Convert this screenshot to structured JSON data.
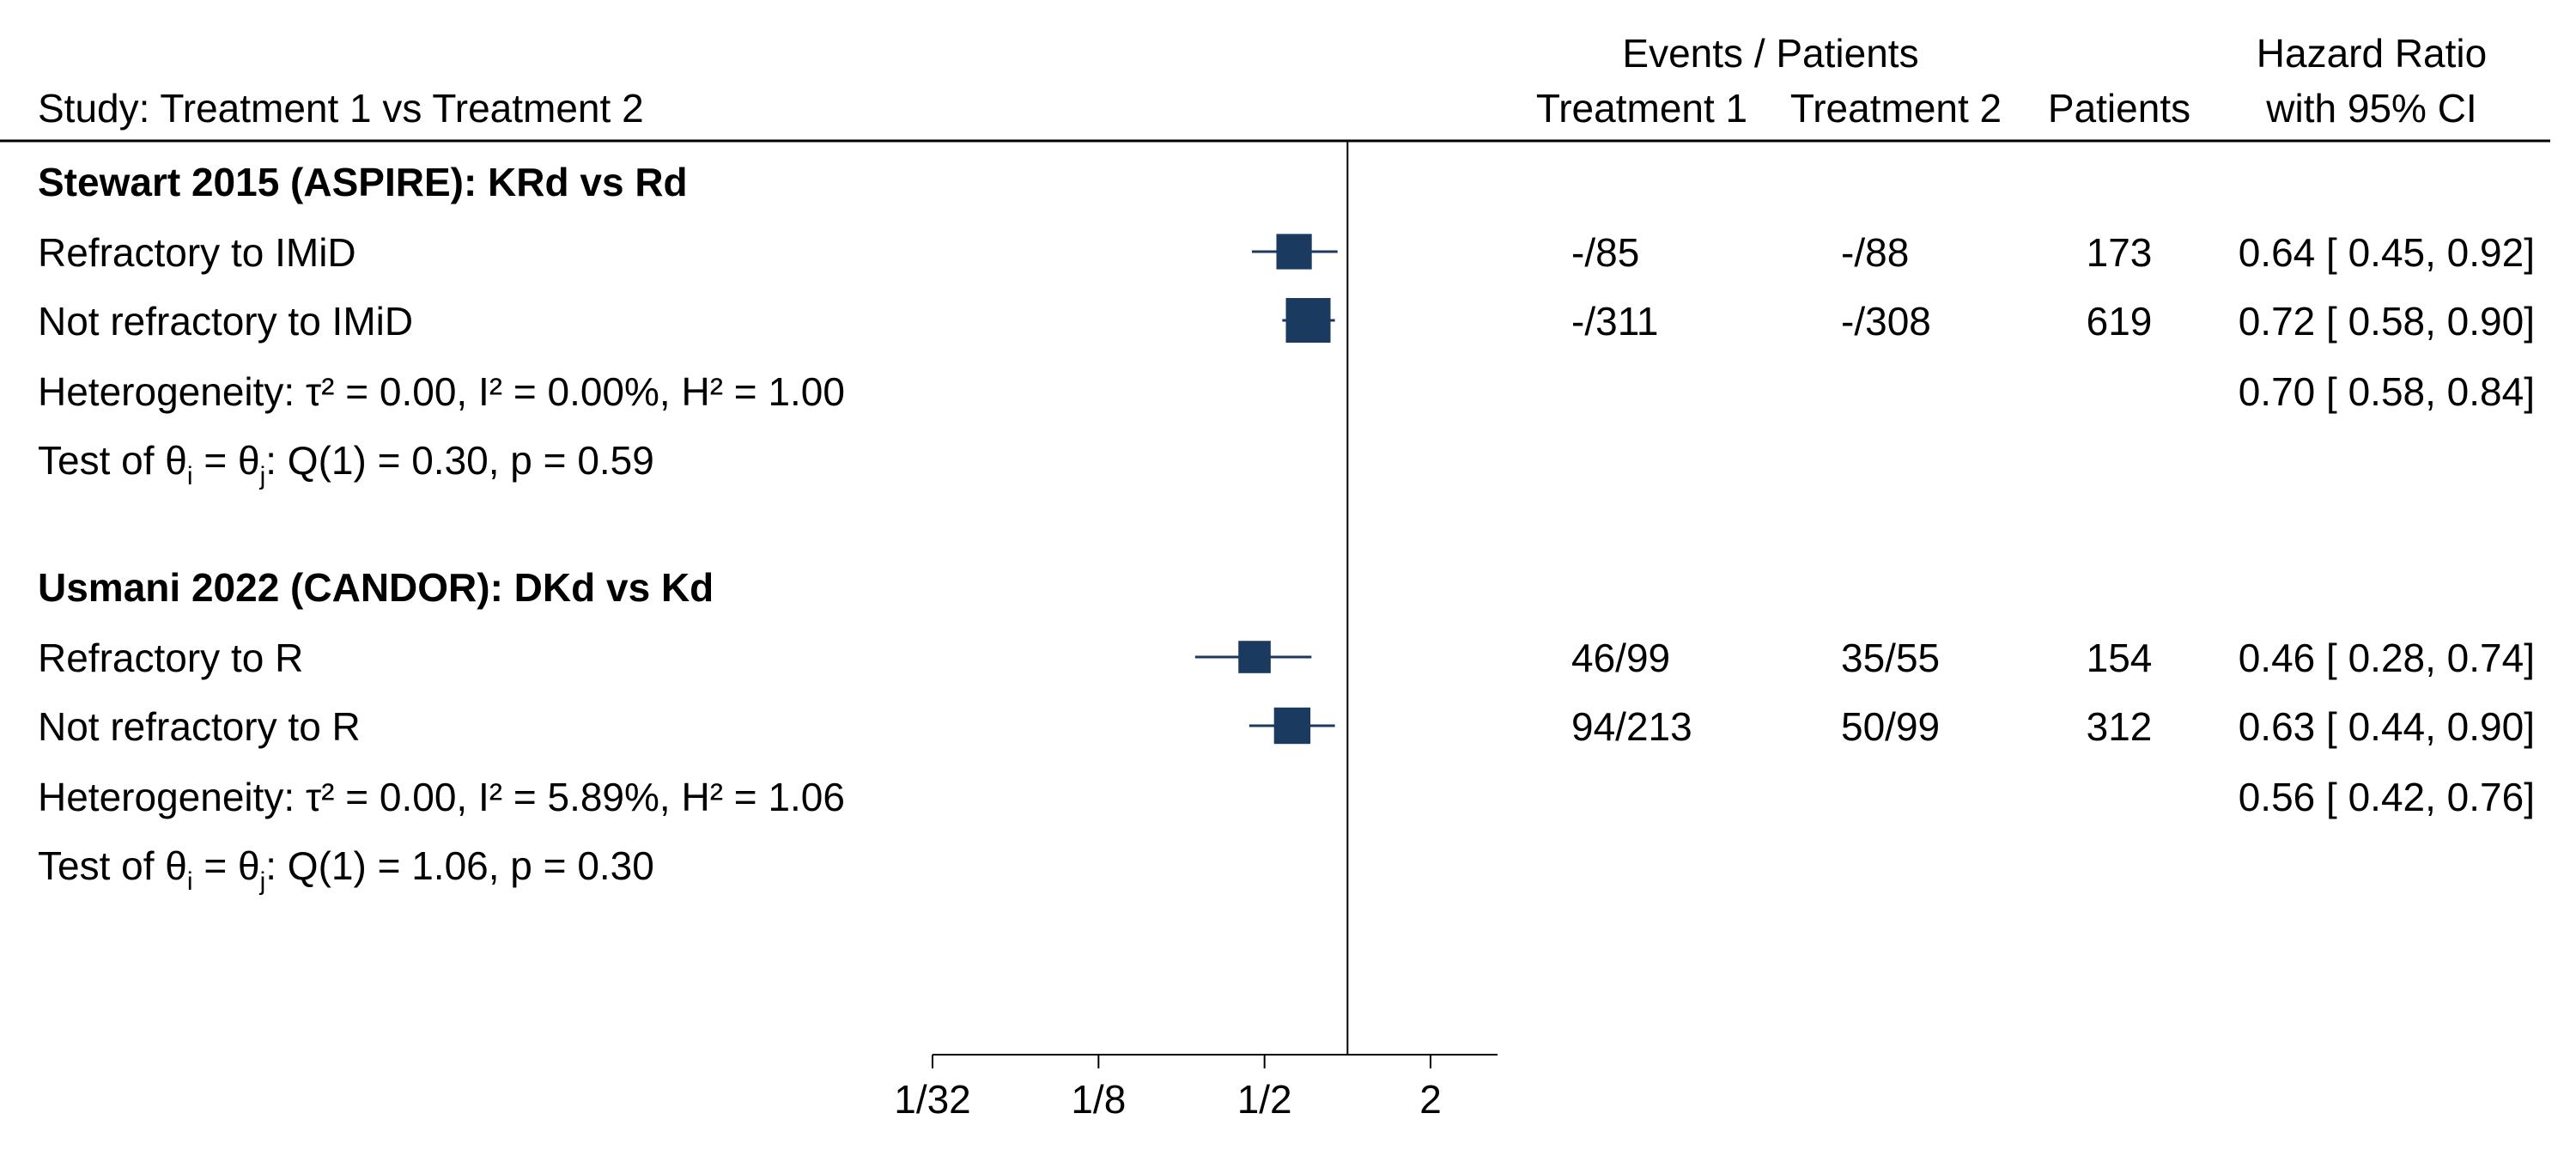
{
  "chart_data": {
    "type": "forest",
    "x_scale": "log2",
    "ticks": [
      {
        "value": 0.03125,
        "label": "1/32"
      },
      {
        "value": 0.125,
        "label": "1/8"
      },
      {
        "value": 0.5,
        "label": "1/2"
      },
      {
        "value": 2,
        "label": "2"
      }
    ],
    "xlim": [
      0.03125,
      3.5
    ],
    "reference_line": 1,
    "marker_color": "#1a3a5f",
    "headers": {
      "study": "Study: Treatment 1 vs Treatment 2",
      "events_group": "Events / Patients",
      "treatment1": "Treatment 1",
      "treatment2": "Treatment 2",
      "patients": "Patients",
      "effect_line1": "Hazard Ratio",
      "effect_line2": "with 95% CI"
    },
    "groups": [
      {
        "title": "Stewart 2015 (ASPIRE): KRd vs Rd",
        "studies": [
          {
            "label": "Refractory to IMiD",
            "events1": "-",
            "n1": "85",
            "events2": "-",
            "n2": "88",
            "patients": "173",
            "hr": 0.64,
            "lo": 0.45,
            "hi": 0.92,
            "weight": 0.55,
            "ci_text": "0.64 [ 0.45,  0.92]"
          },
          {
            "label": "Not refractory to IMiD",
            "events1": "-",
            "n1": "311",
            "events2": "-",
            "n2": "308",
            "patients": "619",
            "hr": 0.72,
            "lo": 0.58,
            "hi": 0.9,
            "weight": 1.0,
            "ci_text": "0.72 [ 0.58,  0.90]"
          }
        ],
        "heterogeneity_prefix": "Heterogeneity: τ² = 0.00, I² = 0.00%, H² = 1.00",
        "pooled_text": "0.70 [ 0.58,  0.84]",
        "test_prefix": "Test of θ",
        "test_sub_i": "i",
        "test_equals": " = θ",
        "test_sub_j": "j",
        "test_suffix": ": Q(1) = 0.30, p = 0.59"
      },
      {
        "title": "Usmani 2022 (CANDOR): DKd vs Kd",
        "studies": [
          {
            "label": "Refractory to R",
            "events1": "46",
            "n1": "99",
            "events2": "35",
            "n2": "55",
            "patients": "154",
            "hr": 0.46,
            "lo": 0.28,
            "hi": 0.74,
            "weight": 0.4,
            "ci_text": "0.46 [ 0.28,  0.74]"
          },
          {
            "label": "Not refractory to R",
            "events1": "94",
            "n1": "213",
            "events2": "50",
            "n2": "99",
            "patients": "312",
            "hr": 0.63,
            "lo": 0.44,
            "hi": 0.9,
            "weight": 0.6,
            "ci_text": "0.63 [ 0.44,  0.90]"
          }
        ],
        "heterogeneity_prefix": "Heterogeneity: τ² = 0.00, I² = 5.89%, H² = 1.06",
        "pooled_text": "0.56 [ 0.42,  0.76]",
        "test_prefix": "Test of θ",
        "test_sub_i": "i",
        "test_equals": " = θ",
        "test_sub_j": "j",
        "test_suffix": ": Q(1) = 1.06, p = 0.30"
      }
    ]
  }
}
